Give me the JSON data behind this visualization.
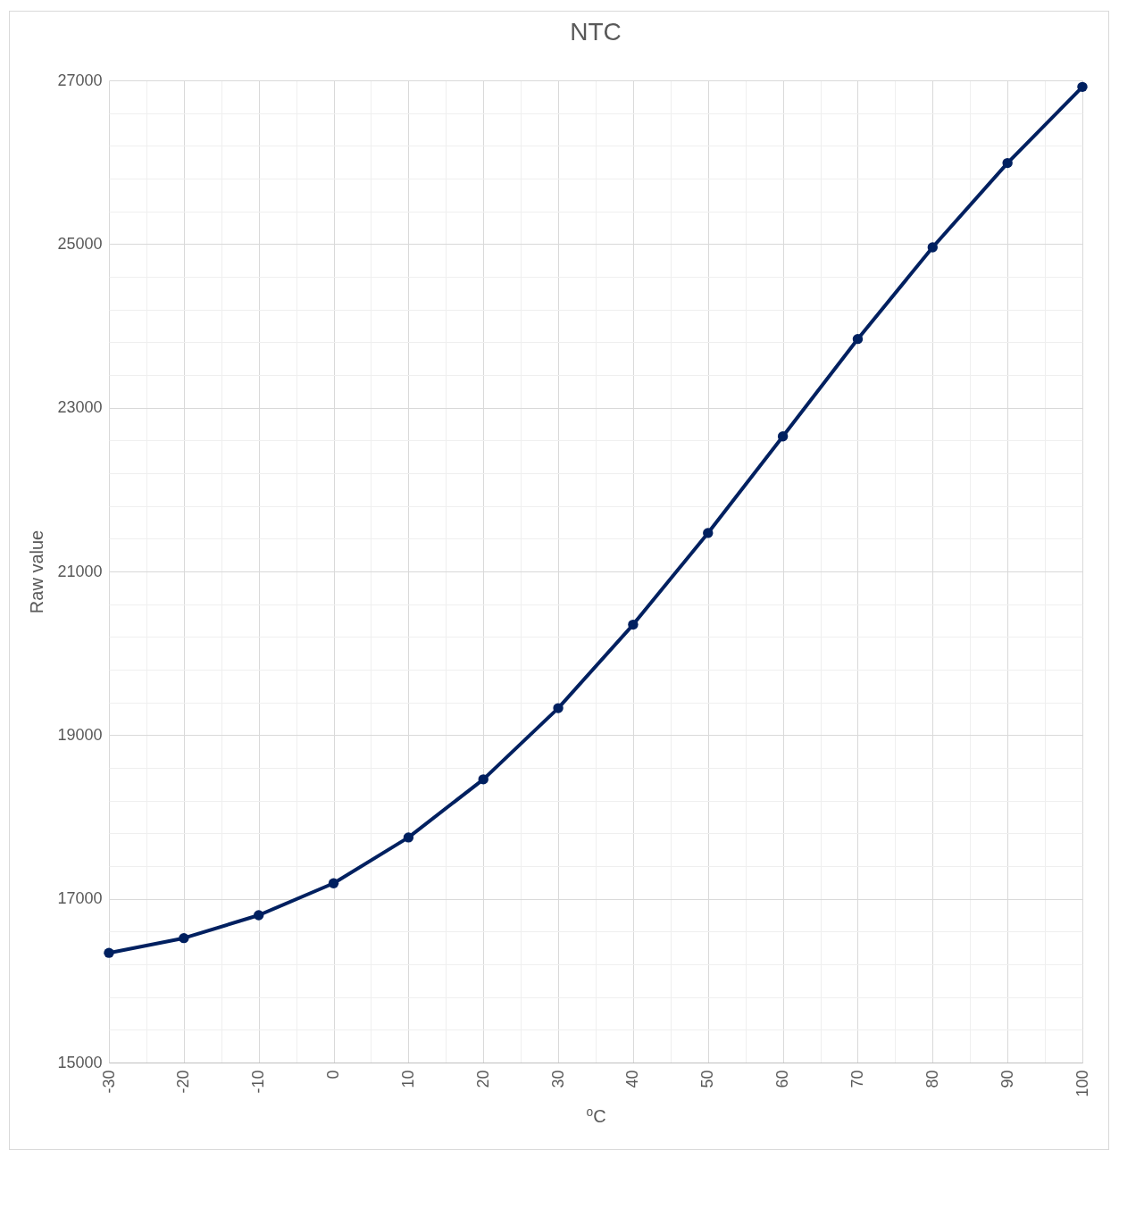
{
  "chart_data": {
    "type": "line",
    "title": "NTC",
    "xlabel": "⁰C",
    "ylabel": "Raw value",
    "x": [
      -30,
      -20,
      -10,
      0,
      10,
      20,
      30,
      40,
      50,
      60,
      70,
      80,
      90,
      100
    ],
    "series": [
      {
        "color": "#002060",
        "values": [
          16340,
          16520,
          16800,
          17190,
          17750,
          18460,
          19330,
          20350,
          21470,
          22650,
          23840,
          24960,
          25990,
          26920
        ]
      }
    ],
    "xlim": [
      -30,
      100
    ],
    "xticks": [
      -30,
      {
        "value": -25,
        "label": null
      },
      -20,
      {
        "value": -15,
        "label": null
      },
      -10,
      {
        "value": -5,
        "label": null
      },
      0,
      {
        "value": 5,
        "label": null
      },
      10,
      {
        "value": 15,
        "label": null
      },
      20,
      {
        "value": 25,
        "label": null
      },
      30,
      {
        "value": 35,
        "label": null
      },
      40,
      {
        "value": 45,
        "label": null
      },
      50,
      {
        "value": 55,
        "label": null
      },
      60,
      {
        "value": 65,
        "label": null
      },
      70,
      {
        "value": 75,
        "label": null
      },
      80,
      {
        "value": 85,
        "label": null
      },
      90,
      {
        "value": 95,
        "label": null
      },
      100
    ],
    "ylim": [
      15000,
      27000
    ],
    "yticks": [
      15000,
      {
        "value": 15400,
        "label": null
      },
      {
        "value": 15800,
        "label": null
      },
      {
        "value": 16200,
        "label": null
      },
      {
        "value": 16600,
        "label": null
      },
      17000,
      {
        "value": 17400,
        "label": null
      },
      {
        "value": 17800,
        "label": null
      },
      {
        "value": 18200,
        "label": null
      },
      {
        "value": 18600,
        "label": null
      },
      19000,
      {
        "value": 19400,
        "label": null
      },
      {
        "value": 19800,
        "label": null
      },
      {
        "value": 20200,
        "label": null
      },
      {
        "value": 20600,
        "label": null
      },
      21000,
      {
        "value": 21400,
        "label": null
      },
      {
        "value": 21800,
        "label": null
      },
      {
        "value": 22200,
        "label": null
      },
      {
        "value": 22600,
        "label": null
      },
      23000,
      {
        "value": 23400,
        "label": null
      },
      {
        "value": 23800,
        "label": null
      },
      {
        "value": 24200,
        "label": null
      },
      {
        "value": 24600,
        "label": null
      },
      25000,
      {
        "value": 25400,
        "label": null
      },
      {
        "value": 25800,
        "label": null
      },
      {
        "value": 26200,
        "label": null
      },
      {
        "value": 26600,
        "label": null
      },
      27000
    ],
    "grid": true,
    "marker": "circle",
    "line_style": "solid"
  }
}
